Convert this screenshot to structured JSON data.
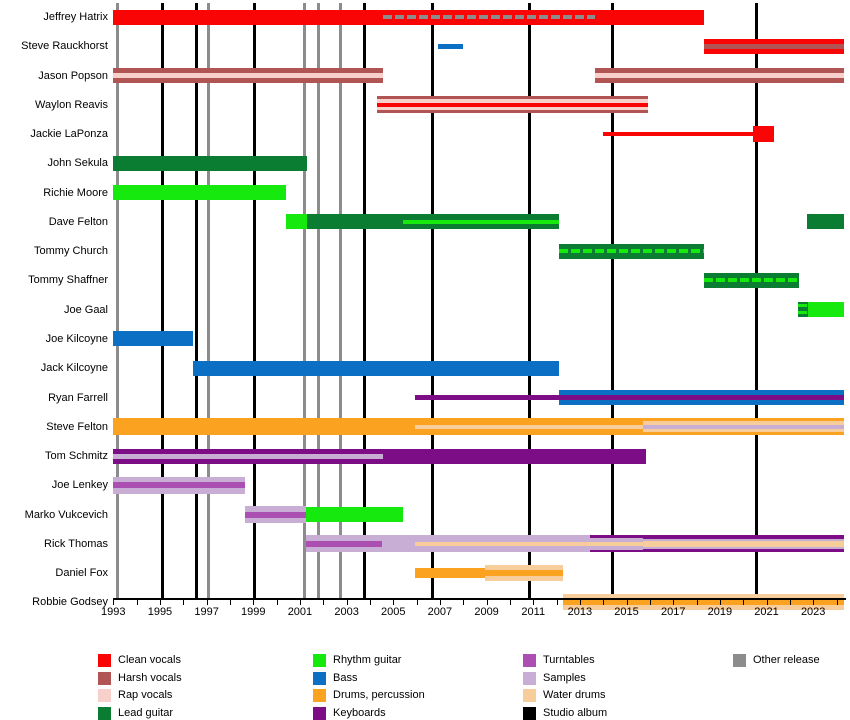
{
  "palette": {
    "clean": "#fa0505",
    "harsh": "#b05454",
    "rap": "#f8d0cb",
    "lead": "#0a7d33",
    "rhythm": "#15e90d",
    "bass": "#0b70c4",
    "drums": "#fba320",
    "keys": "#7d0d86",
    "turntables": "#ab4fb3",
    "samples": "#c8add4",
    "water": "#f7cd9b",
    "album": "#000000",
    "other": "#8c8c8c"
  },
  "chart_data": {
    "type": "timeline",
    "title": "",
    "x_axis": {
      "min_year": 1993,
      "max_year": 2024.3,
      "tick_years_start": 1993,
      "tick_years_end": 2024,
      "label_years": [
        1993,
        1995,
        1997,
        1999,
        2001,
        2003,
        2005,
        2007,
        2009,
        2011,
        2013,
        2015,
        2017,
        2019,
        2021,
        2023
      ]
    },
    "releases": {
      "studio_albums": [
        1995.1,
        1996.55,
        1999.07,
        2003.75,
        2006.7,
        2010.86,
        2014.4,
        2020.57
      ],
      "other_releases": [
        1993.2,
        1997.1,
        2001.2,
        2001.78,
        2002.72
      ]
    },
    "members": [
      {
        "name": "Jeffrey Hatrix",
        "segments": [
          {
            "f": 1993,
            "t": 2004.55,
            "h": 15,
            "L": [
              [
                "clean",
                15
              ]
            ]
          },
          {
            "f": 2004.55,
            "t": 2013.65,
            "h": 15,
            "L": [
              [
                "clean",
                5.5
              ],
              [
                "other",
                4,
                "clean"
              ],
              [
                "clean",
                5.5
              ]
            ]
          },
          {
            "f": 2013.65,
            "t": 2018.3,
            "h": 15,
            "L": [
              [
                "clean",
                15
              ]
            ]
          }
        ]
      },
      {
        "name": "Steve Rauckhorst",
        "segments": [
          {
            "f": 2006.9,
            "t": 2008.0,
            "h": 5,
            "L": [
              [
                "bass",
                5
              ]
            ]
          },
          {
            "f": 2018.3,
            "t": 2024.3,
            "h": 15,
            "L": [
              [
                "clean",
                5
              ],
              [
                "harsh",
                5
              ],
              [
                "clean",
                5
              ]
            ]
          }
        ]
      },
      {
        "name": "Jason Popson",
        "segments": [
          {
            "f": 1993,
            "t": 2004.55,
            "h": 15,
            "L": [
              [
                "harsh",
                5
              ],
              [
                "rap",
                5
              ],
              [
                "harsh",
                5
              ]
            ]
          },
          {
            "f": 2013.65,
            "t": 2024.3,
            "h": 15,
            "L": [
              [
                "harsh",
                5
              ],
              [
                "rap",
                5
              ],
              [
                "harsh",
                5
              ]
            ]
          }
        ]
      },
      {
        "name": "Waylon Reavis",
        "segments": [
          {
            "f": 2004.3,
            "t": 2015.9,
            "h": 17,
            "L": [
              [
                "harsh",
                3
              ],
              [
                "rap",
                3.5
              ],
              [
                "clean",
                4
              ],
              [
                "rap",
                3.5
              ],
              [
                "harsh",
                3
              ]
            ]
          }
        ]
      },
      {
        "name": "Jackie LaPonza",
        "segments": [
          {
            "f": 2014.0,
            "t": 2020.4,
            "h": 4,
            "L": [
              [
                "clean",
                4
              ]
            ]
          },
          {
            "f": 2020.4,
            "t": 2021.3,
            "h": 16,
            "L": [
              [
                "clean",
                16
              ]
            ]
          }
        ]
      },
      {
        "name": "John Sekula",
        "segments": [
          {
            "f": 1993,
            "t": 2001.3,
            "h": 15,
            "L": [
              [
                "lead",
                15
              ]
            ]
          }
        ]
      },
      {
        "name": "Richie Moore",
        "segments": [
          {
            "f": 1993,
            "t": 2000.4,
            "h": 15,
            "L": [
              [
                "rhythm",
                15
              ]
            ]
          }
        ]
      },
      {
        "name": "Dave Felton",
        "segments": [
          {
            "f": 2000.4,
            "t": 2001.3,
            "h": 15,
            "L": [
              [
                "rhythm",
                15
              ]
            ]
          },
          {
            "f": 2001.3,
            "t": 2005.4,
            "h": 15,
            "L": [
              [
                "lead",
                15
              ]
            ]
          },
          {
            "f": 2005.4,
            "t": 2012.1,
            "h": 15,
            "L": [
              [
                "lead",
                5.5
              ],
              [
                "rhythm",
                4
              ],
              [
                "lead",
                5.5
              ]
            ]
          },
          {
            "f": 2022.75,
            "t": 2024.3,
            "h": 15,
            "L": [
              [
                "lead",
                15
              ]
            ]
          }
        ]
      },
      {
        "name": "Tommy Church",
        "segments": [
          {
            "f": 2012.1,
            "t": 2018.3,
            "h": 15,
            "L": [
              [
                "lead",
                5.5
              ],
              [
                "rhythm",
                4,
                "lead"
              ],
              [
                "lead",
                5.5
              ]
            ]
          }
        ]
      },
      {
        "name": "Tommy Shaffner",
        "segments": [
          {
            "f": 2018.3,
            "t": 2022.4,
            "h": 15,
            "L": [
              [
                "lead",
                5.5
              ],
              [
                "rhythm",
                4,
                "lead"
              ],
              [
                "lead",
                5.5
              ]
            ]
          }
        ]
      },
      {
        "name": "Joe Gaal",
        "segments": [
          {
            "f": 2022.35,
            "t": 2022.78,
            "h": 15,
            "L": [
              [
                "lead",
                2
              ],
              [
                "rhythm",
                3,
                "lead"
              ],
              [
                "lead",
                4
              ],
              [
                "rhythm",
                3,
                "lead"
              ],
              [
                "lead",
                3
              ]
            ]
          },
          {
            "f": 2022.78,
            "t": 2024.3,
            "h": 15,
            "L": [
              [
                "rhythm",
                15
              ]
            ]
          }
        ]
      },
      {
        "name": "Joe Kilcoyne",
        "segments": [
          {
            "f": 1993,
            "t": 1996.42,
            "h": 15,
            "L": [
              [
                "bass",
                15
              ]
            ]
          }
        ]
      },
      {
        "name": "Jack Kilcoyne",
        "segments": [
          {
            "f": 1996.42,
            "t": 2012.1,
            "h": 15,
            "L": [
              [
                "bass",
                15
              ]
            ]
          }
        ]
      },
      {
        "name": "Ryan Farrell",
        "segments": [
          {
            "f": 2005.93,
            "t": 2012.1,
            "h": 5,
            "L": [
              [
                "keys",
                5
              ]
            ]
          },
          {
            "f": 2012.1,
            "t": 2024.3,
            "h": 15,
            "L": [
              [
                "bass",
                5
              ],
              [
                "keys",
                5
              ],
              [
                "bass",
                5
              ]
            ]
          }
        ]
      },
      {
        "name": "Steve Felton",
        "segments": [
          {
            "f": 1993,
            "t": 2005.93,
            "h": 17,
            "L": [
              [
                "drums",
                17
              ]
            ]
          },
          {
            "f": 2005.93,
            "t": 2015.7,
            "h": 17,
            "L": [
              [
                "drums",
                6.5
              ],
              [
                "water",
                4
              ],
              [
                "drums",
                6.5
              ]
            ]
          },
          {
            "f": 2015.7,
            "t": 2024.3,
            "h": 17,
            "L": [
              [
                "drums",
                3
              ],
              [
                "water",
                3.5
              ],
              [
                "samples",
                4
              ],
              [
                "water",
                3.5
              ],
              [
                "drums",
                3
              ]
            ]
          }
        ]
      },
      {
        "name": "Tom Schmitz",
        "segments": [
          {
            "f": 1993,
            "t": 2004.55,
            "h": 15,
            "L": [
              [
                "keys",
                5
              ],
              [
                "samples",
                5
              ],
              [
                "keys",
                5
              ]
            ]
          },
          {
            "f": 2004.55,
            "t": 2015.85,
            "h": 15,
            "L": [
              [
                "keys",
                15
              ]
            ]
          }
        ]
      },
      {
        "name": "Joe Lenkey",
        "segments": [
          {
            "f": 1993,
            "t": 1998.64,
            "h": 17,
            "L": [
              [
                "samples",
                5.5
              ],
              [
                "turntables",
                6
              ],
              [
                "samples",
                5.5
              ]
            ]
          }
        ]
      },
      {
        "name": "Marko Vukcevich",
        "segments": [
          {
            "f": 1998.64,
            "t": 2001.28,
            "h": 17,
            "L": [
              [
                "samples",
                5.5
              ],
              [
                "turntables",
                6
              ],
              [
                "samples",
                5.5
              ]
            ]
          },
          {
            "f": 2001.28,
            "t": 2005.4,
            "h": 15,
            "L": [
              [
                "rhythm",
                15
              ]
            ]
          }
        ]
      },
      {
        "name": "Rick Thomas",
        "segments": [
          {
            "f": 2001.28,
            "t": 2004.52,
            "h": 17,
            "L": [
              [
                "samples",
                5.5
              ],
              [
                "turntables",
                6
              ],
              [
                "samples",
                5.5
              ]
            ]
          },
          {
            "f": 2004.52,
            "t": 2005.93,
            "h": 17,
            "L": [
              [
                "samples",
                17
              ]
            ]
          },
          {
            "f": 2005.93,
            "t": 2013.43,
            "h": 17,
            "L": [
              [
                "samples",
                6.5
              ],
              [
                "water",
                4
              ],
              [
                "samples",
                6.5
              ]
            ]
          },
          {
            "f": 2013.43,
            "t": 2015.7,
            "h": 17,
            "L": [
              [
                "keys",
                2.5
              ],
              [
                "samples",
                4
              ],
              [
                "water",
                4
              ],
              [
                "samples",
                4
              ],
              [
                "keys",
                2.5
              ]
            ]
          },
          {
            "f": 2015.7,
            "t": 2024.3,
            "h": 17,
            "L": [
              [
                "keys",
                3.5
              ],
              [
                "samples",
                2
              ],
              [
                "water",
                6
              ],
              [
                "samples",
                2
              ],
              [
                "keys",
                3.5
              ]
            ]
          }
        ]
      },
      {
        "name": "Daniel Fox",
        "segments": [
          {
            "f": 2005.93,
            "t": 2008.93,
            "h": 10,
            "L": [
              [
                "drums",
                10
              ]
            ]
          },
          {
            "f": 2008.93,
            "t": 2012.28,
            "h": 16,
            "L": [
              [
                "water",
                5
              ],
              [
                "drums",
                6
              ],
              [
                "water",
                5
              ]
            ]
          }
        ]
      },
      {
        "name": "Robbie Godsey",
        "segments": [
          {
            "f": 2012.28,
            "t": 2024.3,
            "h": 16,
            "L": [
              [
                "water",
                5
              ],
              [
                "drums",
                6
              ],
              [
                "water",
                5
              ]
            ]
          }
        ]
      }
    ],
    "legend": {
      "columns": [
        [
          {
            "key": "clean",
            "label": "Clean vocals"
          },
          {
            "key": "harsh",
            "label": "Harsh vocals"
          },
          {
            "key": "rap",
            "label": "Rap vocals"
          },
          {
            "key": "lead",
            "label": "Lead guitar"
          }
        ],
        [
          {
            "key": "rhythm",
            "label": "Rhythm guitar"
          },
          {
            "key": "bass",
            "label": "Bass"
          },
          {
            "key": "drums",
            "label": "Drums, percussion"
          },
          {
            "key": "keys",
            "label": "Keyboards"
          }
        ],
        [
          {
            "key": "turntables",
            "label": "Turntables"
          },
          {
            "key": "samples",
            "label": "Samples"
          },
          {
            "key": "water",
            "label": "Water drums"
          },
          {
            "key": "album",
            "label": "Studio album"
          }
        ],
        [
          {
            "key": "other",
            "label": "Other release"
          }
        ]
      ]
    }
  }
}
